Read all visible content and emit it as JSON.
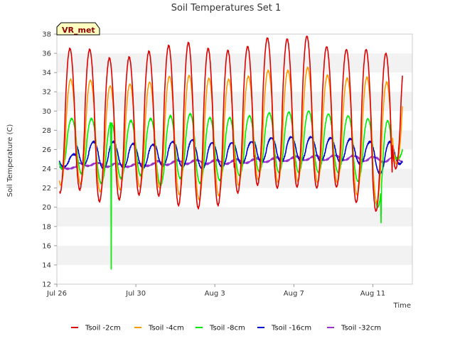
{
  "chart_data": {
    "type": "line",
    "title": "Soil Temperatures Set 1",
    "xlabel": "Time",
    "ylabel": "Soil Temperature (C)",
    "badge": "VR_met",
    "ylim": [
      12,
      38
    ],
    "yticks": [
      12,
      14,
      16,
      18,
      20,
      22,
      24,
      26,
      28,
      30,
      32,
      34,
      36,
      38
    ],
    "xlim": [
      "2024-07-26",
      "2024-08-13"
    ],
    "xticks": [
      {
        "label": "Jul 26",
        "date": "2024-07-26"
      },
      {
        "label": "Jul 30",
        "date": "2024-07-30"
      },
      {
        "label": "Aug 3",
        "date": "2024-08-03"
      },
      {
        "label": "Aug 7",
        "date": "2024-08-07"
      },
      {
        "label": "Aug 11",
        "date": "2024-08-11"
      }
    ],
    "grid": "horizontal bands",
    "legend_position": "bottom",
    "days": [
      "Jul 26",
      "Jul 27",
      "Jul 28",
      "Jul 29",
      "Jul 30",
      "Jul 31",
      "Aug 1",
      "Aug 2",
      "Aug 3",
      "Aug 4",
      "Aug 5",
      "Aug 6",
      "Aug 7",
      "Aug 8",
      "Aug 9",
      "Aug 10",
      "Aug 11",
      "Aug 12"
    ],
    "series": [
      {
        "name": "Tsoil -2cm",
        "color": "#dd0000",
        "daily_max": [
          36.5,
          36.4,
          35.5,
          35.6,
          36.2,
          36.8,
          37.1,
          36.5,
          36.3,
          36.7,
          37.6,
          37.5,
          37.8,
          36.7,
          36.4,
          36.4,
          36.0,
          36.0
        ],
        "daily_min": [
          21.5,
          21.8,
          20.6,
          20.8,
          21.3,
          21.2,
          20.2,
          19.9,
          20.2,
          21.5,
          22.3,
          22.0,
          22.1,
          22.0,
          22.1,
          20.5,
          19.6,
          24.0
        ]
      },
      {
        "name": "Tsoil -4cm",
        "color": "#ff9900",
        "daily_max": [
          33.3,
          33.2,
          32.6,
          32.8,
          33.0,
          33.6,
          33.7,
          33.4,
          33.3,
          33.6,
          34.2,
          34.2,
          34.5,
          33.7,
          33.4,
          33.5,
          33.0,
          33.0
        ],
        "daily_min": [
          22.3,
          22.4,
          21.6,
          21.8,
          22.1,
          22.0,
          21.3,
          20.8,
          21.2,
          22.3,
          22.9,
          22.6,
          22.7,
          22.6,
          22.6,
          21.3,
          20.5,
          24.5
        ]
      },
      {
        "name": "Tsoil -8cm",
        "color": "#00ee00",
        "daily_max": [
          29.2,
          29.2,
          28.8,
          29.0,
          29.2,
          29.5,
          29.7,
          29.3,
          29.3,
          29.5,
          29.8,
          29.9,
          30.0,
          29.7,
          29.5,
          29.2,
          29.0,
          27.0
        ],
        "daily_min": [
          24.0,
          23.5,
          22.5,
          23.0,
          23.3,
          22.3,
          23.0,
          22.5,
          22.8,
          23.3,
          23.7,
          23.6,
          23.6,
          23.6,
          23.6,
          22.7,
          20.0,
          25.0
        ]
      },
      {
        "name": "Tsoil -16cm",
        "color": "#0000cc",
        "daily_max": [
          25.5,
          26.8,
          26.8,
          26.6,
          26.5,
          26.8,
          27.0,
          26.7,
          26.7,
          26.8,
          27.2,
          27.3,
          27.3,
          27.2,
          27.1,
          26.8,
          26.8,
          26.6
        ],
        "daily_min": [
          24.2,
          24.4,
          24.0,
          24.1,
          24.1,
          24.3,
          24.2,
          24.0,
          24.2,
          24.5,
          24.7,
          24.7,
          24.8,
          24.8,
          24.7,
          24.5,
          23.5,
          24.5
        ]
      },
      {
        "name": "Tsoil -32cm",
        "color": "#9933cc",
        "daily_max": [
          24.2,
          24.6,
          24.6,
          24.5,
          24.6,
          24.8,
          24.9,
          24.9,
          24.9,
          25.0,
          25.1,
          25.2,
          25.3,
          25.4,
          25.4,
          25.3,
          25.2,
          25.2
        ],
        "daily_min": [
          24.0,
          24.3,
          24.2,
          24.2,
          24.3,
          24.4,
          24.5,
          24.5,
          24.5,
          24.6,
          24.7,
          24.8,
          24.9,
          24.9,
          24.9,
          24.8,
          24.7,
          24.7
        ]
      }
    ],
    "spikes": [
      {
        "series": "Tsoil -8cm",
        "date": "2024-07-28T18:00",
        "value": 13.5
      },
      {
        "series": "Tsoil -8cm",
        "date": "2024-08-11T10:00",
        "value": 18.3
      }
    ]
  }
}
